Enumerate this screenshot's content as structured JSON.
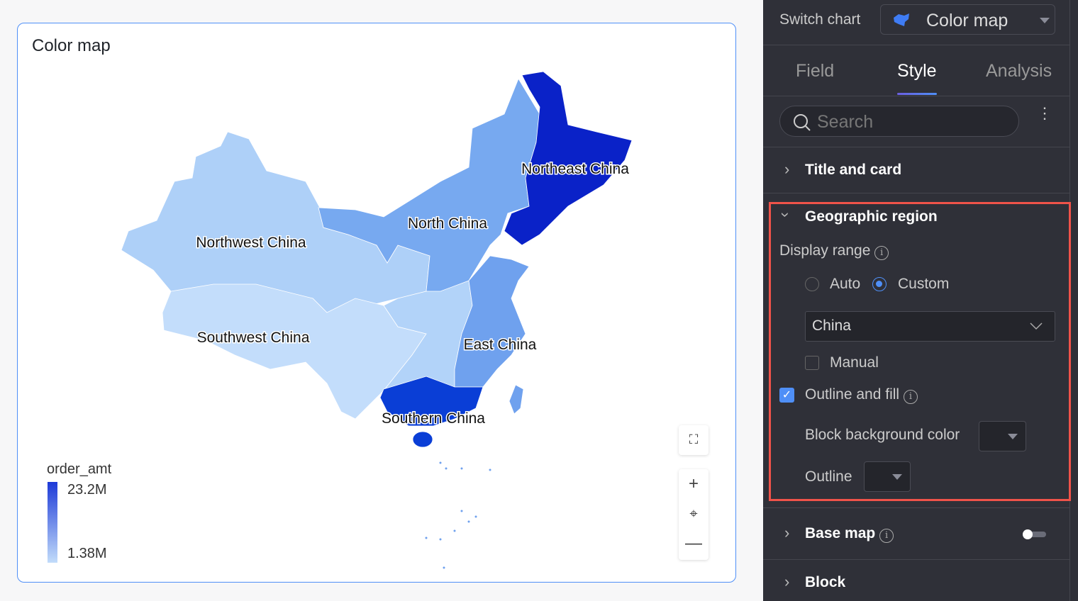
{
  "card": {
    "title": "Color map"
  },
  "map": {
    "regions": [
      {
        "name": "Northeast China",
        "color": "#0a22c8"
      },
      {
        "name": "North China",
        "color": "#77a9f0"
      },
      {
        "name": "Northwest China",
        "color": "#aed0f8"
      },
      {
        "name": "Southwest China",
        "color": "#c3ddfb"
      },
      {
        "name": "East China",
        "color": "#6fa1ee"
      },
      {
        "name": "Southern China",
        "color": "#0a3ed6"
      }
    ],
    "central_color": "#b2d3f9",
    "legend": {
      "title": "order_amt",
      "max": "23.2M",
      "min": "1.38M",
      "color_high": "#1d3ad8",
      "color_low": "#c2dcfa"
    },
    "controls": [
      "fullscreen-icon",
      "zoom-in-icon",
      "locate-icon",
      "zoom-out-icon"
    ]
  },
  "panel": {
    "switch_label": "Switch chart",
    "chart_type": "Color map",
    "tabs": [
      {
        "label": "Field"
      },
      {
        "label": "Style",
        "active": true
      },
      {
        "label": "Analysis"
      }
    ],
    "search_placeholder": "Search",
    "sections": {
      "title_card": "Title and card",
      "geo": "Geographic region",
      "display_range": "Display range",
      "auto": "Auto",
      "custom": "Custom",
      "region_value": "China",
      "manual": "Manual",
      "outline_fill": "Outline and fill",
      "block_bg": "Block background color",
      "outline": "Outline",
      "base_map": "Base map",
      "block": "Block"
    },
    "radio_selected": "Custom",
    "manual_checked": false,
    "outline_fill_checked": true,
    "base_map_on": false,
    "accent": "#4f8ff7",
    "highlight": "#f0534a"
  }
}
